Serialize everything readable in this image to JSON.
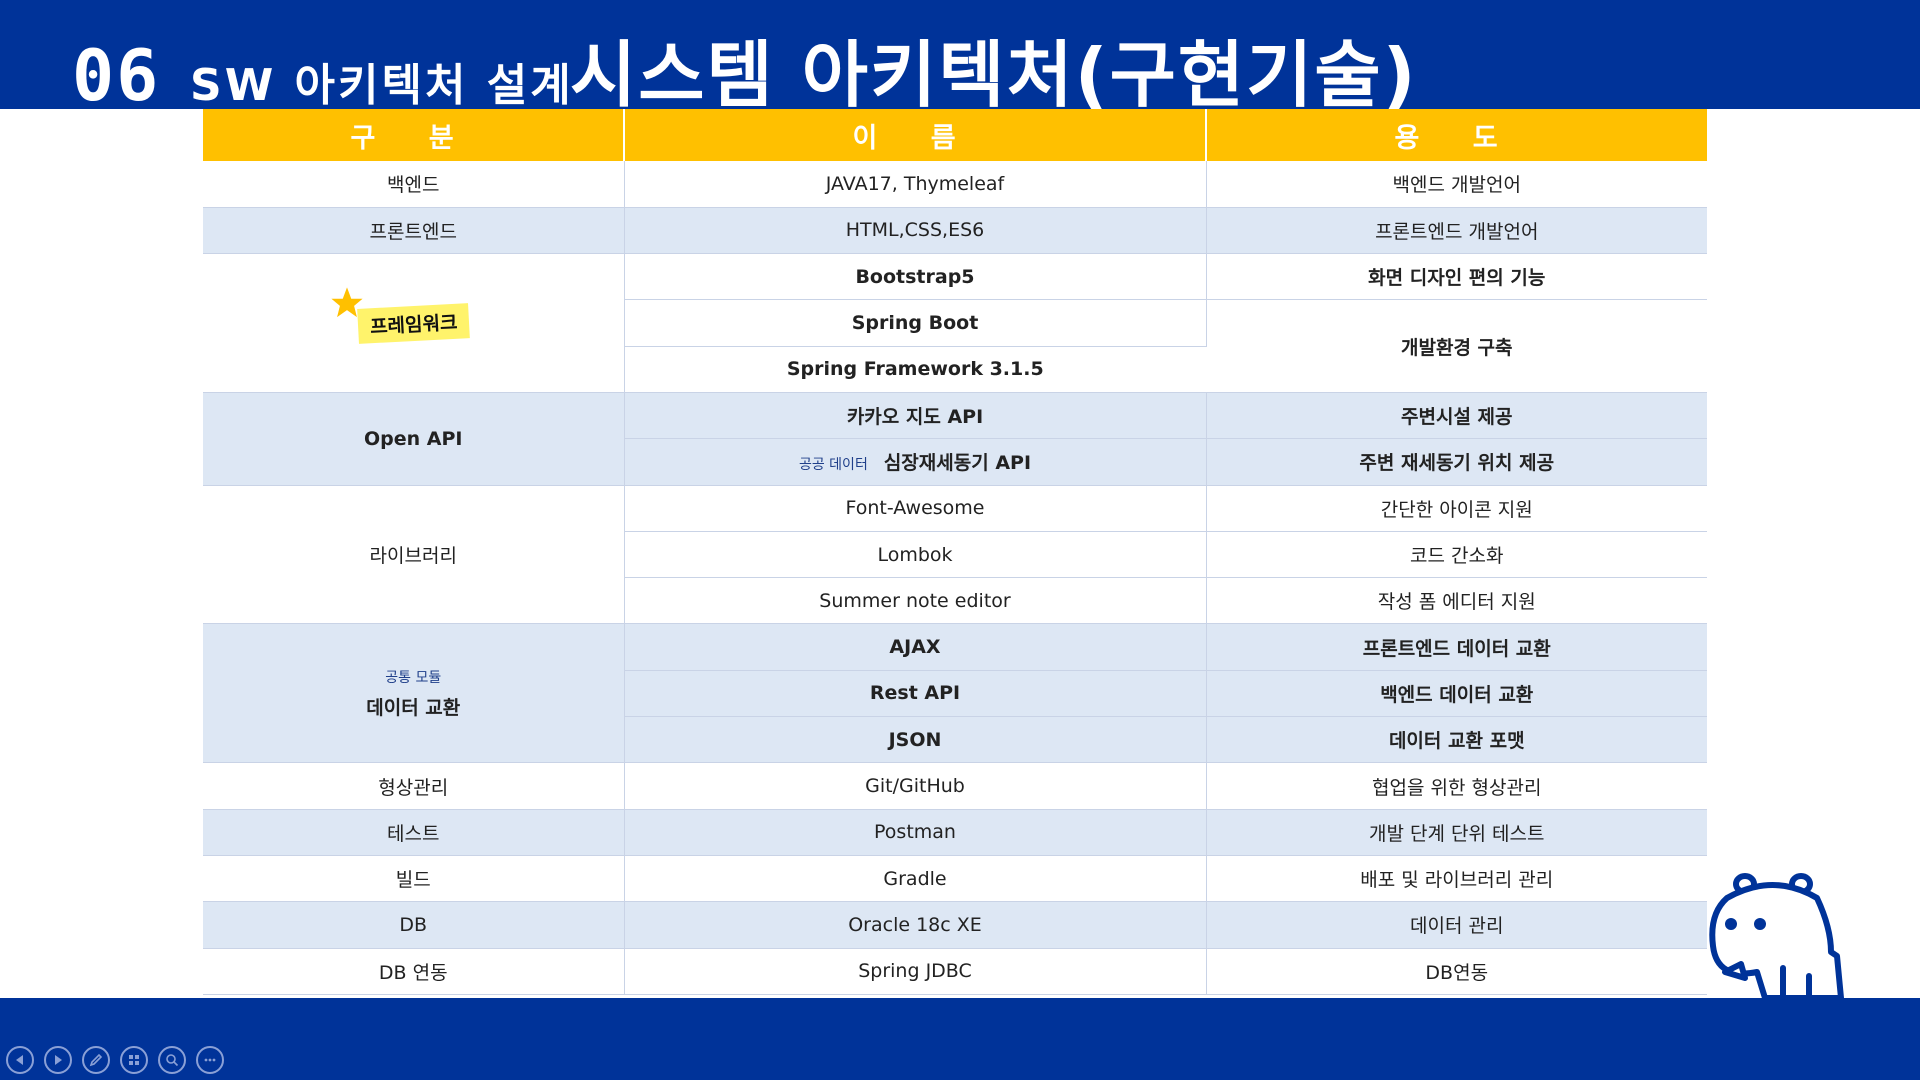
{
  "title": {
    "number": "06",
    "subtitle": "SW 아키텍처 설계",
    "main": "시스템 아키텍처(구현기술)"
  },
  "table": {
    "headers": [
      "구 분",
      "이 름",
      "용 도"
    ],
    "rows": {
      "backend": {
        "category": "백엔드",
        "name": "JAVA17,  Thymeleaf",
        "purpose": "백엔드 개발언어"
      },
      "frontend": {
        "category": "프론트엔드",
        "name": "HTML,CSS,ES6",
        "purpose": "프론트엔드 개발언어"
      },
      "framework": {
        "category": "프레임워크",
        "items": [
          {
            "name": "Bootstrap5",
            "purpose": "화면 디자인 편의 기능"
          },
          {
            "name": "Spring Boot"
          },
          {
            "name": "Spring Framework 3.1.5"
          }
        ],
        "shared_purpose": "개발환경 구축"
      },
      "openapi": {
        "category": "Open API",
        "items": [
          {
            "name": "카카오 지도 API",
            "purpose": "주변시설 제공"
          },
          {
            "tag": "공공 데이터",
            "name": "심장재세동기 API",
            "purpose": "주변 재세동기 위치 제공"
          }
        ]
      },
      "library": {
        "category": "라이브러리",
        "items": [
          {
            "name": "Font-Awesome",
            "purpose": "간단한 아이콘 지원"
          },
          {
            "name": "Lombok",
            "purpose": "코드 간소화"
          },
          {
            "name": "Summer note editor",
            "purpose": "작성 폼 에디터 지원"
          }
        ]
      },
      "data_exchange": {
        "tag": "공통 모듈",
        "category": "데이터 교환",
        "items": [
          {
            "name": "AJAX",
            "purpose": "프론트엔드 데이터 교환"
          },
          {
            "name": "Rest API",
            "purpose": "백엔드 데이터 교환"
          },
          {
            "name": "JSON",
            "purpose": "데이터 교환 포맷"
          }
        ]
      },
      "vcs": {
        "category": "형상관리",
        "name": "Git/GitHub",
        "purpose": "협업을 위한 형상관리"
      },
      "test": {
        "category": "테스트",
        "name": "Postman",
        "purpose": "개발 단계 단위 테스트"
      },
      "build": {
        "category": "빌드",
        "name": "Gradle",
        "purpose": "배포 및 라이브러리 관리"
      },
      "db": {
        "category": "DB",
        "name": "Oracle 18c XE",
        "purpose": "데이터 관리"
      },
      "db_link": {
        "category": "DB 연동",
        "name": "Spring JDBC",
        "purpose": "DB연동"
      }
    }
  },
  "colors": {
    "band": "#003399",
    "header_fill": "#ffc000",
    "alt_row": "#dde7f4",
    "highlight": "#fff36b",
    "star": "#ffc000"
  },
  "icons": {
    "star": "star-icon",
    "mascot": "hippo-mascot-icon",
    "controls": [
      "prev-slide-icon",
      "next-slide-icon",
      "pen-icon",
      "slides-grid-icon",
      "zoom-icon",
      "more-icon"
    ]
  }
}
